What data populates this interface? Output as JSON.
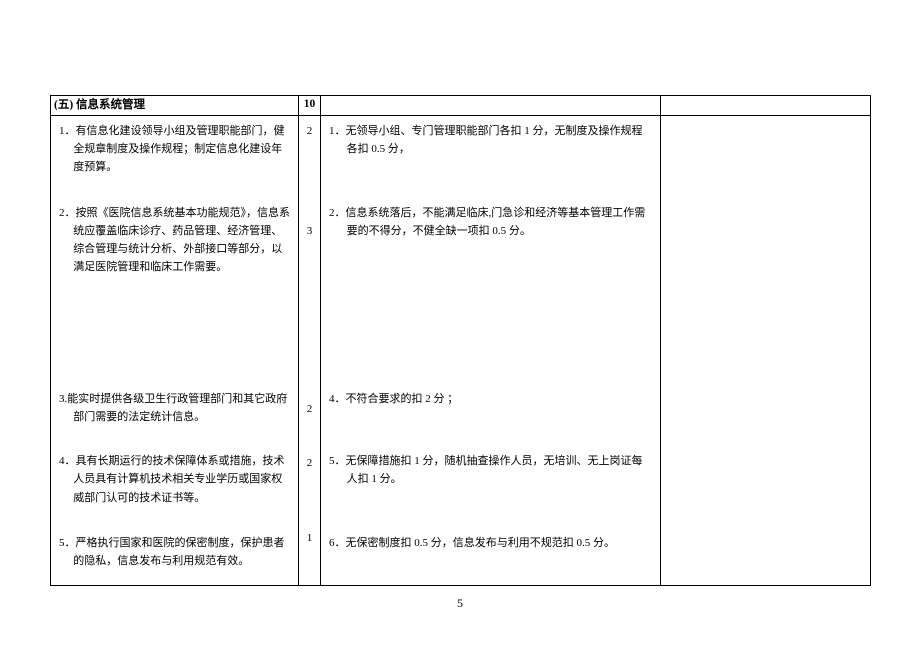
{
  "page_number": "5",
  "colors": {
    "border": "#000000",
    "text": "#000000",
    "background": "#ffffff"
  },
  "table": {
    "header": {
      "section_title": "(五) 信息系统管理",
      "section_score": "10"
    },
    "rows": [
      {
        "criteria": "1．有信息化建设领导小组及管理职能部门，健全规章制度及操作规程；制定信息化建设年度预算。",
        "score": "2",
        "desc": "1．无领导小组、专门管理职能部门各扣 1 分，无制度及操作规程各扣 0.5 分，"
      },
      {
        "criteria": "2．按照《医院信息系统基本功能规范》，信息系统应覆盖临床诊疗、药品管理、经济管理、综合管理与统计分析、外部接口等部分，以满足医院管理和临床工作需要。",
        "score": "3",
        "desc": "2．信息系统落后，不能满足临床,门急诊和经济等基本管理工作需要的不得分，不健全缺一项扣 0.5 分。"
      },
      {
        "criteria": "3.能实时提供各级卫生行政管理部门和其它政府部门需要的法定统计信息。",
        "score": "2",
        "desc": "4．不符合要求的扣 2 分  ；"
      },
      {
        "criteria": "4．具有长期运行的技术保障体系或措施，技术人员具有计算机技术相关专业学历或国家权威部门认可的技术证书等。",
        "score": "2",
        "desc": "5．无保障措施扣 1 分，随机抽查操作人员，无培训、无上岗证每人扣 1 分。"
      },
      {
        "criteria": "5．严格执行国家和医院的保密制度，保护患者的隐私，信息发布与利用规范有效。",
        "score": "1",
        "desc": "6．无保密制度扣 0.5 分，信息发布与利用不规范扣 0.5 分。"
      }
    ]
  }
}
